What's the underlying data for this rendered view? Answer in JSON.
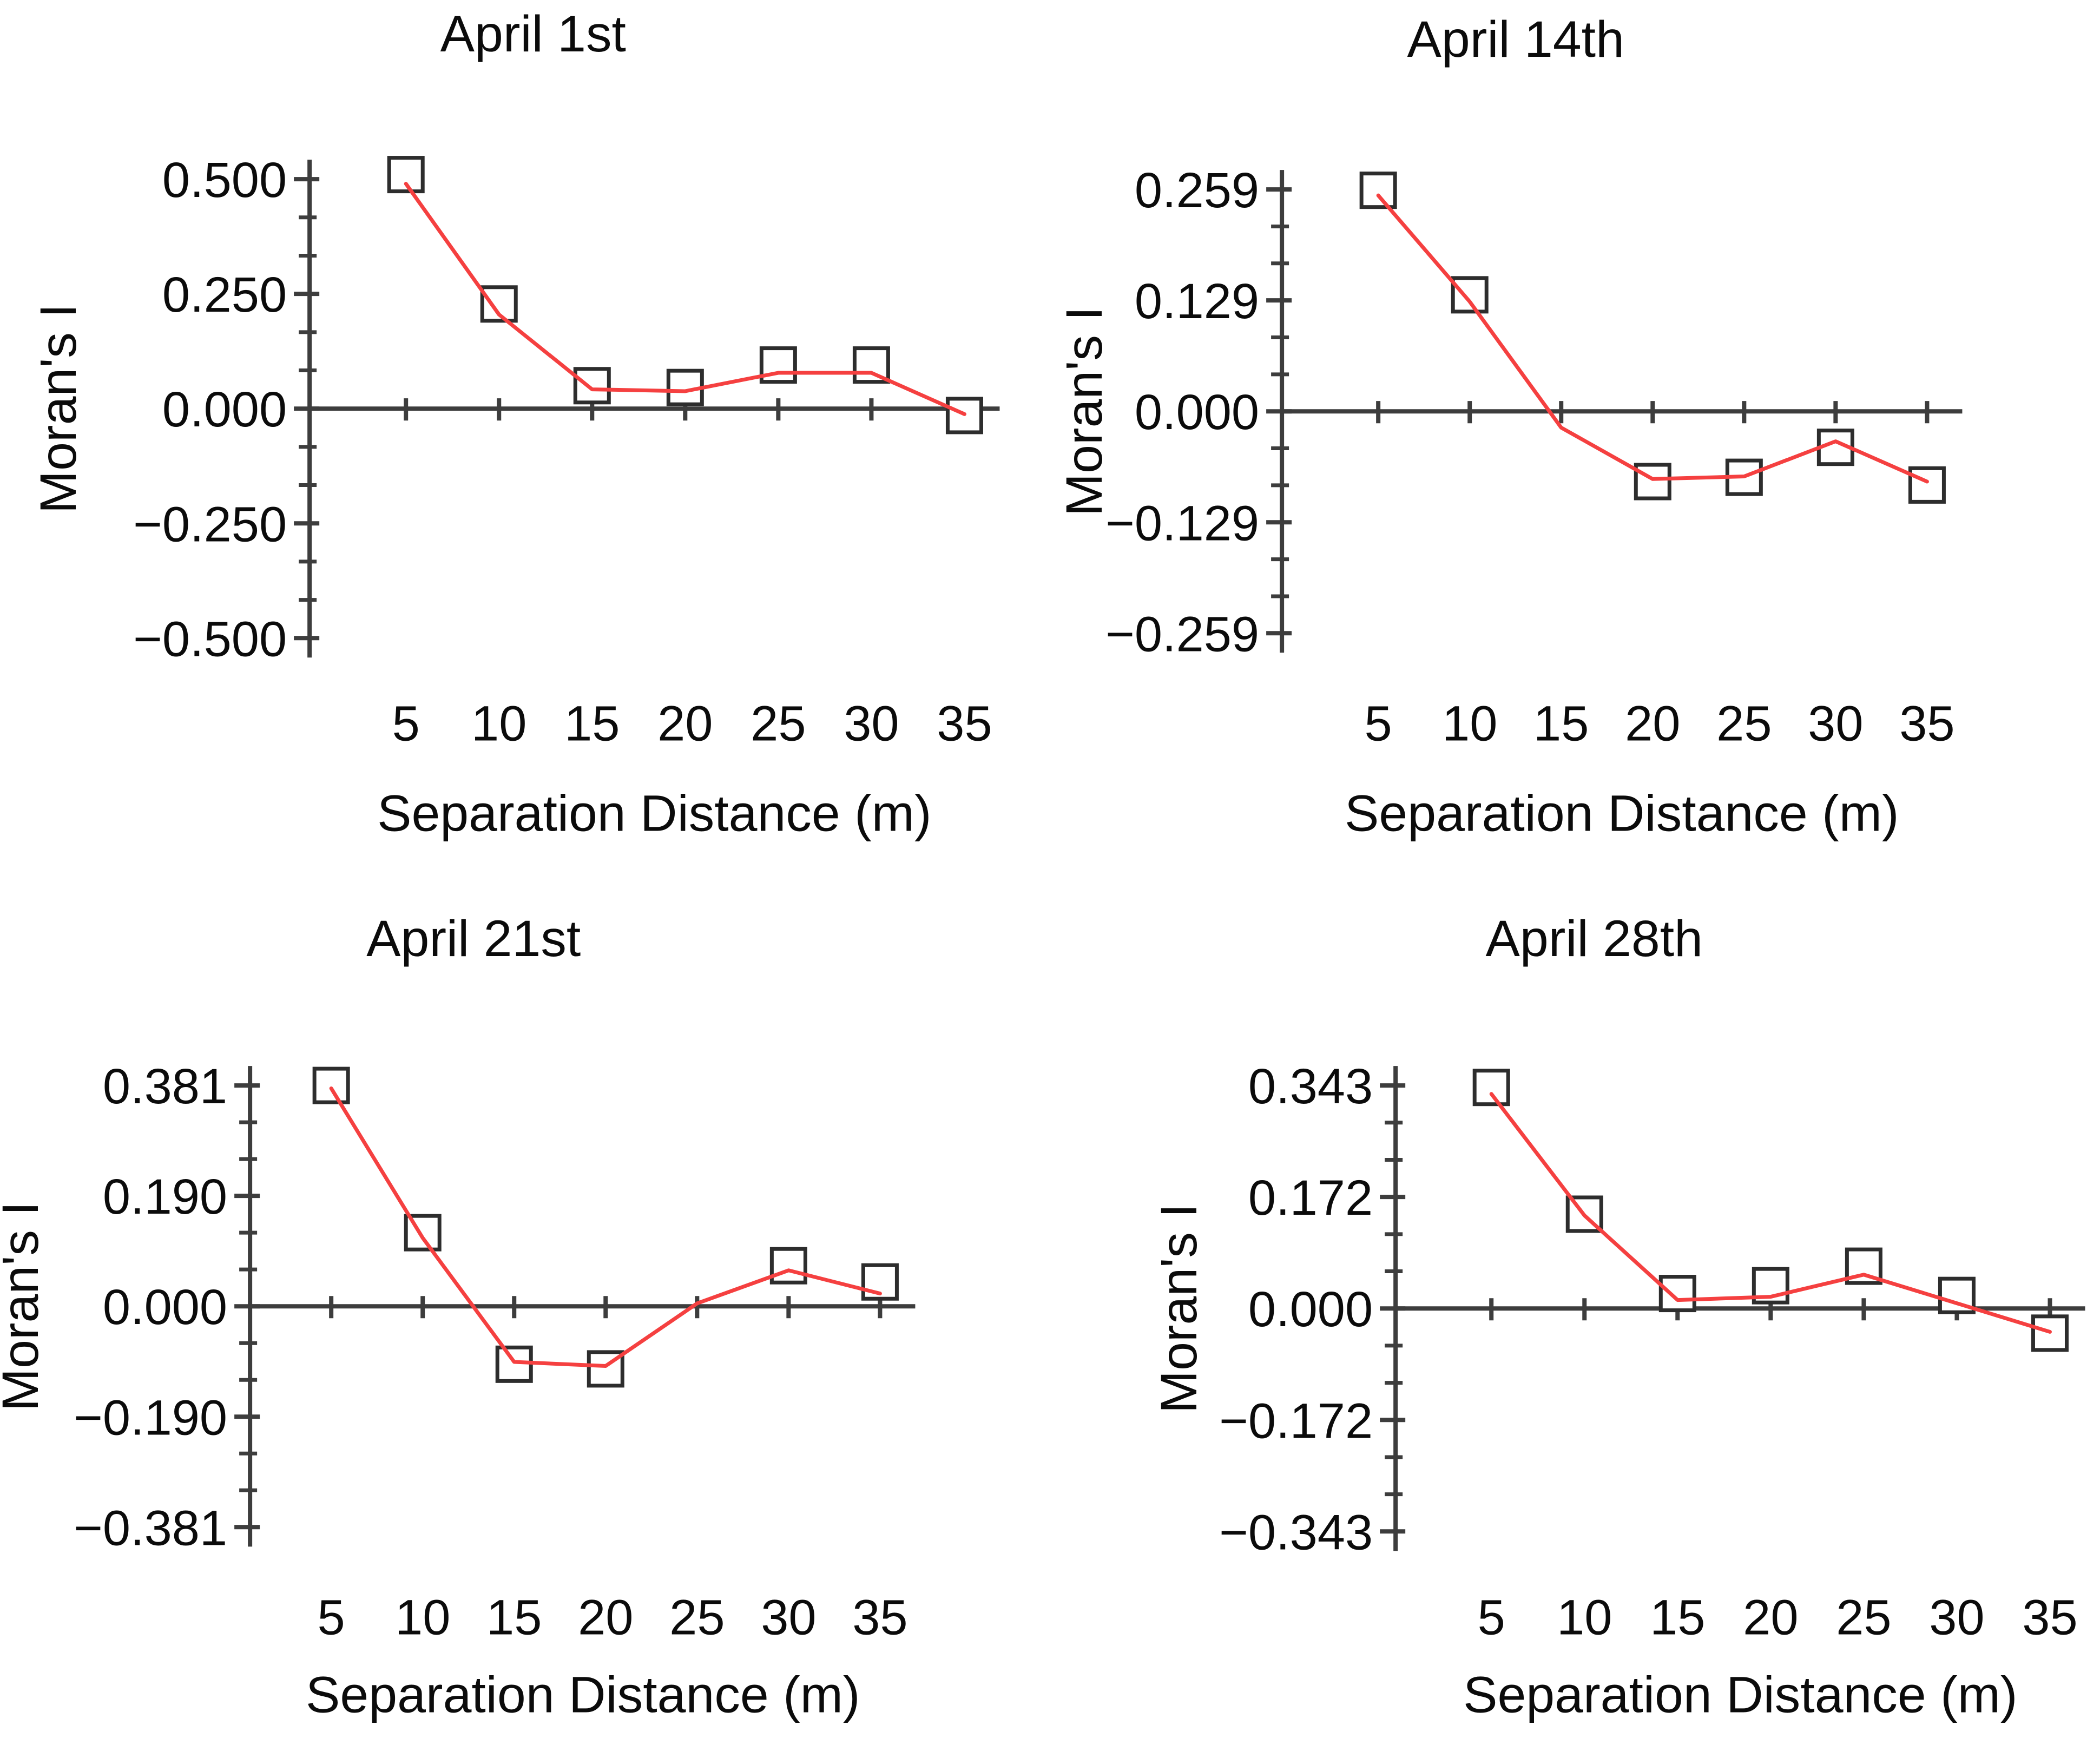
{
  "page": {
    "background": "#ffffff"
  },
  "colors": {
    "line": "#f54040",
    "marker_stroke": "#2d2d2d",
    "marker_fill": "#ffffff",
    "axis": "#3d3d3d",
    "text": "#0b0b0b"
  },
  "chart_data": [
    {
      "type": "line",
      "title": "April 1st",
      "xlabel": "Separation Distance (m)",
      "ylabel": "Moran's I",
      "marker": "square",
      "grid": false,
      "legend": "none",
      "x_ticks": [
        5,
        10,
        15,
        20,
        25,
        30,
        35
      ],
      "y_tick_labels": [
        "0.500",
        "0.250",
        "0.000",
        "−0.250",
        "−0.500"
      ],
      "y_step": 0.25,
      "ylim": [
        -0.55,
        0.55
      ],
      "xlim": [
        0,
        38
      ],
      "markers": [
        [
          5,
          0.51
        ],
        [
          10,
          0.228
        ],
        [
          15,
          0.05
        ],
        [
          20,
          0.046
        ],
        [
          25,
          0.095
        ],
        [
          30,
          0.095
        ],
        [
          35,
          -0.015
        ]
      ],
      "line": [
        [
          5,
          0.49
        ],
        [
          10,
          0.205
        ],
        [
          15,
          0.042
        ],
        [
          20,
          0.038
        ],
        [
          25,
          0.078
        ],
        [
          30,
          0.078
        ],
        [
          35,
          -0.012
        ]
      ]
    },
    {
      "type": "line",
      "title": "April 14th",
      "xlabel": "Separation Distance (m)",
      "ylabel": "Moran's I",
      "marker": "square",
      "grid": false,
      "legend": "none",
      "x_ticks": [
        5,
        10,
        15,
        20,
        25,
        30,
        35
      ],
      "y_tick_labels": [
        "0.259",
        "0.129",
        "0.000",
        "−0.129",
        "−0.259"
      ],
      "y_step": 0.1295,
      "ylim": [
        -0.285,
        0.285
      ],
      "xlim": [
        0,
        38
      ],
      "markers": [
        [
          5,
          0.258
        ],
        [
          10,
          0.136
        ],
        [
          20,
          -0.082
        ],
        [
          25,
          -0.077
        ],
        [
          30,
          -0.042
        ],
        [
          35,
          -0.086
        ]
      ],
      "line": [
        [
          5,
          0.252
        ],
        [
          10,
          0.128
        ],
        [
          15,
          -0.019
        ],
        [
          20,
          -0.079
        ],
        [
          25,
          -0.076
        ],
        [
          30,
          -0.035
        ],
        [
          35,
          -0.082
        ]
      ]
    },
    {
      "type": "line",
      "title": "April 21st",
      "xlabel": "Separation Distance (m)",
      "ylabel": "Moran's I",
      "marker": "square",
      "grid": false,
      "legend": "none",
      "x_ticks": [
        5,
        10,
        15,
        20,
        25,
        30,
        35
      ],
      "y_tick_labels": [
        "0.381",
        "0.190",
        "0.000",
        "−0.190",
        "−0.381"
      ],
      "y_step": 0.1905,
      "ylim": [
        -0.42,
        0.42
      ],
      "xlim": [
        0,
        38
      ],
      "markers": [
        [
          5,
          0.381
        ],
        [
          10,
          0.127
        ],
        [
          15,
          -0.1
        ],
        [
          20,
          -0.108
        ],
        [
          30,
          0.07
        ],
        [
          35,
          0.042
        ]
      ],
      "line": [
        [
          5,
          0.376
        ],
        [
          10,
          0.118
        ],
        [
          15,
          -0.096
        ],
        [
          20,
          -0.103
        ],
        [
          25,
          0.005
        ],
        [
          30,
          0.062
        ],
        [
          35,
          0.022
        ]
      ]
    },
    {
      "type": "line",
      "title": "April 28th",
      "xlabel": "Separation Distance (m)",
      "ylabel": "Moran's I",
      "marker": "square",
      "grid": false,
      "legend": "none",
      "x_ticks": [
        5,
        10,
        15,
        20,
        25,
        30,
        35
      ],
      "y_tick_labels": [
        "0.343",
        "0.172",
        "0.000",
        "−0.172",
        "−0.343"
      ],
      "y_step": 0.1715,
      "ylim": [
        -0.38,
        0.38
      ],
      "xlim": [
        0,
        38
      ],
      "markers": [
        [
          5,
          0.34
        ],
        [
          10,
          0.145
        ],
        [
          15,
          0.023
        ],
        [
          20,
          0.035
        ],
        [
          25,
          0.065
        ],
        [
          30,
          0.02
        ],
        [
          35,
          -0.038
        ]
      ],
      "line": [
        [
          5,
          0.33
        ],
        [
          10,
          0.143
        ],
        [
          15,
          0.013
        ],
        [
          20,
          0.018
        ],
        [
          25,
          0.052
        ],
        [
          30,
          0.008
        ],
        [
          35,
          -0.036
        ]
      ]
    }
  ]
}
